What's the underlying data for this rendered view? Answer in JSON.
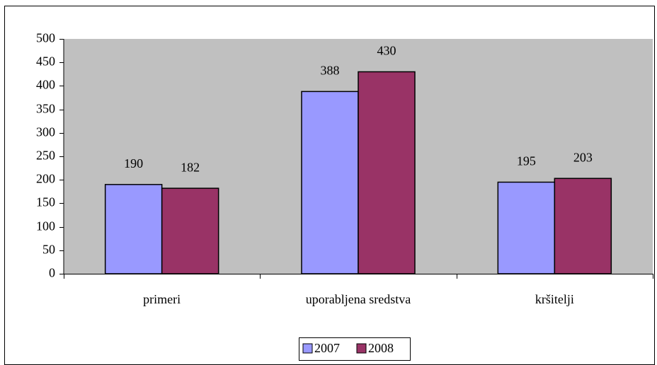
{
  "chart_data": {
    "type": "bar",
    "categories": [
      "primeri",
      "uporabljena sredstva",
      "kršitelji"
    ],
    "series": [
      {
        "name": "2007",
        "color": "#9999ff",
        "values": [
          190,
          388,
          195
        ]
      },
      {
        "name": "2008",
        "color": "#993366",
        "values": [
          182,
          430,
          203
        ]
      }
    ],
    "ylim": [
      0,
      500
    ],
    "yticks": [
      0,
      50,
      100,
      150,
      200,
      250,
      300,
      350,
      400,
      450,
      500
    ],
    "plot_background": "#c0c0c0",
    "legend": "bottom"
  }
}
